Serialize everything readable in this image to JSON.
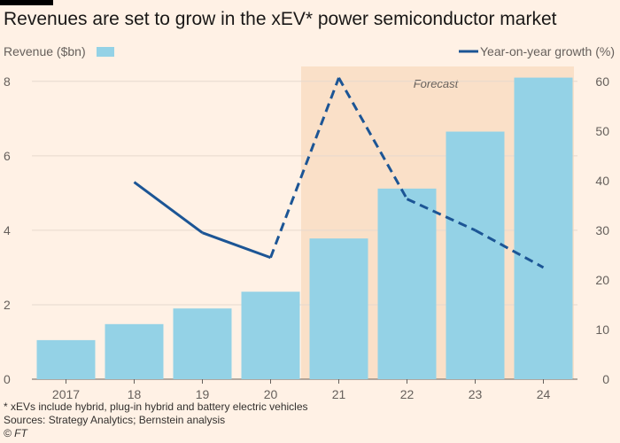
{
  "title": "Revenues are set to grow in the xEV* power semiconductor market",
  "footnote": "* xEVs include hybrid,  plug-in hybrid and battery electric vehicles",
  "sources": "Sources: Strategy Analytics; Bernstein analysis",
  "credit": "© FT",
  "colors": {
    "background": "#fff1e5",
    "bar": "#94d2e6",
    "line": "#1c5595",
    "forecast_shade": "#fae0c8",
    "grid": "#e6d9ce",
    "axis_text": "#66605c"
  },
  "chart_data": {
    "type": "bar",
    "categories": [
      "2017",
      "18",
      "19",
      "20",
      "21",
      "22",
      "23",
      "24"
    ],
    "series": [
      {
        "name": "Revenue ($bn)",
        "type": "bar",
        "axis": "left",
        "values": [
          1.05,
          1.48,
          1.9,
          2.35,
          3.78,
          5.12,
          6.65,
          8.1
        ]
      },
      {
        "name": "Year-on-year growth (%)",
        "type": "line",
        "axis": "right",
        "values": [
          null,
          39.7,
          29.5,
          24.5,
          60.7,
          36.3,
          30.0,
          22.5
        ],
        "dashed_from_index": 4
      }
    ],
    "left_axis": {
      "label": "Revenue ($bn)",
      "ticks": [
        0,
        2,
        4,
        6,
        8
      ],
      "range": [
        0,
        8.4
      ]
    },
    "right_axis": {
      "label": "Year-on-year growth (%)",
      "ticks": [
        0,
        10,
        20,
        30,
        40,
        50,
        60
      ],
      "range": [
        0,
        63
      ]
    },
    "forecast": {
      "label": "Forecast",
      "from_category": "21",
      "to_category": "24"
    },
    "legend": {
      "placement": "top"
    },
    "grid": true
  }
}
